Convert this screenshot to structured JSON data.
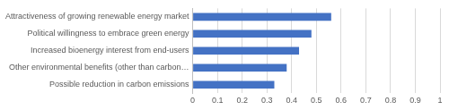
{
  "chart_data": {
    "type": "bar",
    "orientation": "horizontal",
    "categories": [
      "Attractiveness of growing renewable energy market",
      "Political willingness to embrace green energy",
      "Increased bioenergy interest from end-users",
      "Other environmental benefits (other than carbon…",
      "Possible reduction in carbon emissions"
    ],
    "values": [
      0.56,
      0.48,
      0.43,
      0.38,
      0.33
    ],
    "color": "#4472c4",
    "xlim": [
      0,
      1
    ],
    "xticks": [
      0,
      0.1,
      0.2,
      0.3,
      0.4,
      0.5,
      0.6,
      0.7,
      0.8,
      0.9,
      1
    ],
    "grid": true
  }
}
